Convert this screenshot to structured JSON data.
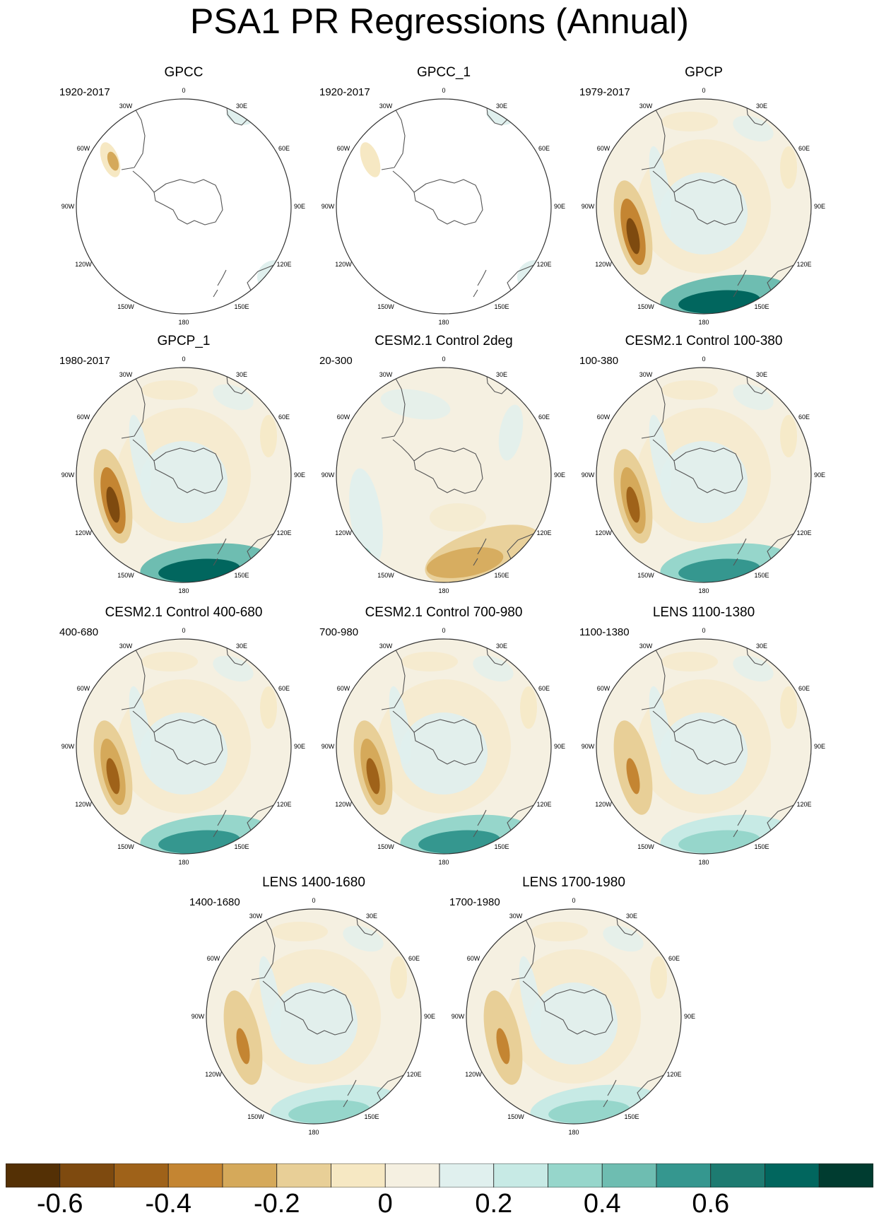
{
  "title": "PSA1 PR Regressions (Annual)",
  "longitude_labels": {
    "lon_0": "0",
    "lon_30e": "30E",
    "lon_60e": "60E",
    "lon_90e": "90E",
    "lon_120e": "120E",
    "lon_150e": "150E",
    "lon_180": "180",
    "lon_150w": "150W",
    "lon_120w": "120W",
    "lon_90w": "90W",
    "lon_60w": "60W",
    "lon_30w": "30W"
  },
  "panels": [
    {
      "name": "GPCC",
      "period": "1920-2017",
      "style": "sparse_gpcc"
    },
    {
      "name": "GPCC_1",
      "period": "1920-2017",
      "style": "sparse_gpcc1"
    },
    {
      "name": "GPCP",
      "period": "1979-2017",
      "style": "full_strong"
    },
    {
      "name": "GPCP_1",
      "period": "1980-2017",
      "style": "full_strong"
    },
    {
      "name": "CESM2.1 Control 2deg",
      "period": "20-300",
      "style": "cesm2deg"
    },
    {
      "name": "CESM2.1 Control 100-380",
      "period": "100-380",
      "style": "full_medium"
    },
    {
      "name": "CESM2.1 Control 400-680",
      "period": "400-680",
      "style": "full_medium"
    },
    {
      "name": "CESM2.1 Control 700-980",
      "period": "700-980",
      "style": "full_medium"
    },
    {
      "name": "LENS 1100-1380",
      "period": "1100-1380",
      "style": "full_weak"
    },
    {
      "name": "LENS 1400-1680",
      "period": "1400-1680",
      "style": "full_weak"
    },
    {
      "name": "LENS 1700-1980",
      "period": "1700-1980",
      "style": "full_weak"
    }
  ],
  "colorbar": {
    "colors": [
      "#543005",
      "#7e4a0f",
      "#9f6219",
      "#c48532",
      "#d5a95a",
      "#e8cf97",
      "#f6e8c3",
      "#f5f0e1",
      "#e0f0ee",
      "#c7eae5",
      "#96d6cb",
      "#6ebdb1",
      "#35978f",
      "#1d7b71",
      "#01665e",
      "#003c30"
    ],
    "labels": [
      "-0.6",
      "-0.4",
      "-0.2",
      "0",
      "0.2",
      "0.4",
      "0.6"
    ]
  }
}
